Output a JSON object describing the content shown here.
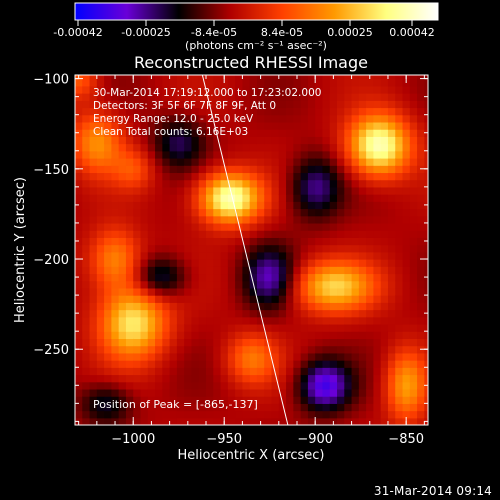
{
  "colorbar": {
    "ticks": [
      "-0.00042",
      "-0.00025",
      "-8.4e-05",
      "8.4e-05",
      "0.00025",
      "0.00042"
    ],
    "units": "(photons cm⁻² s⁻¹ asec⁻²)",
    "range": [
      -0.00042,
      0.00042
    ],
    "colors": [
      "#0000ff",
      "#6a00d8",
      "#000000",
      "#b00000",
      "#ff4000",
      "#ff9900",
      "#ffff80",
      "#ffffff"
    ]
  },
  "footer": {
    "timestamp": "31-Mar-2014 09:14"
  },
  "chart_data": {
    "type": "heatmap",
    "title": "Reconstructed RHESSI Image",
    "xlabel": "Heliocentric X (arcsec)",
    "ylabel": "Heliocentric Y (arcsec)",
    "xlim": [
      -1032,
      -838
    ],
    "ylim": [
      -292,
      -98
    ],
    "x_ticks": [
      -1000,
      -950,
      -900,
      -850
    ],
    "y_ticks": [
      -100,
      -150,
      -200,
      -250
    ],
    "x_tick_labels": [
      "−1000",
      "−950",
      "−900",
      "−850"
    ],
    "y_tick_labels": [
      "−100",
      "−150",
      "−200",
      "−250"
    ],
    "annotations": [
      "30-Mar-2014 17:19:12.000 to 17:23:02.000",
      "Detectors: 3F 5F 6F 7F 8F 9F, Att 0",
      "Energy Range: 12.0 - 25.0 keV",
      "Clean     Total counts: 6.16E+03"
    ],
    "peak_label": "Position of Peak = [-865,-137]",
    "sources": [
      {
        "x": -947,
        "y": -166,
        "amp": 0.00042,
        "sx": 12,
        "sy": 10
      },
      {
        "x": -865,
        "y": -137,
        "amp": 0.00042,
        "sx": 12,
        "sy": 12
      },
      {
        "x": -1000,
        "y": -235,
        "amp": 0.00034,
        "sx": 13,
        "sy": 14
      },
      {
        "x": -890,
        "y": -215,
        "amp": 0.0003,
        "sx": 16,
        "sy": 10
      },
      {
        "x": -1010,
        "y": -200,
        "amp": 0.00022,
        "sx": 10,
        "sy": 12
      },
      {
        "x": -1020,
        "y": -135,
        "amp": 0.00022,
        "sx": 10,
        "sy": 12
      },
      {
        "x": -935,
        "y": -255,
        "amp": 0.00018,
        "sx": 10,
        "sy": 10
      },
      {
        "x": -850,
        "y": -270,
        "amp": 0.00024,
        "sx": 8,
        "sy": 14
      },
      {
        "x": -1000,
        "y": -150,
        "amp": 0.00012,
        "sx": 8,
        "sy": 8
      },
      {
        "x": -1030,
        "y": -100,
        "amp": 0.00015,
        "sx": 8,
        "sy": 8
      },
      {
        "x": -895,
        "y": -270,
        "amp": -0.00028,
        "sx": 10,
        "sy": 10
      },
      {
        "x": -925,
        "y": -210,
        "amp": -0.00022,
        "sx": 10,
        "sy": 12
      },
      {
        "x": -975,
        "y": -135,
        "amp": -0.00016,
        "sx": 10,
        "sy": 10
      },
      {
        "x": -900,
        "y": -160,
        "amp": -0.0002,
        "sx": 10,
        "sy": 12
      },
      {
        "x": -985,
        "y": -210,
        "amp": -0.00018,
        "sx": 10,
        "sy": 8
      },
      {
        "x": -1015,
        "y": -280,
        "amp": -0.00015,
        "sx": 10,
        "sy": 8
      }
    ],
    "overlay_line": [
      {
        "x": -962,
        "y": -98
      },
      {
        "x": -915,
        "y": -292
      }
    ]
  }
}
